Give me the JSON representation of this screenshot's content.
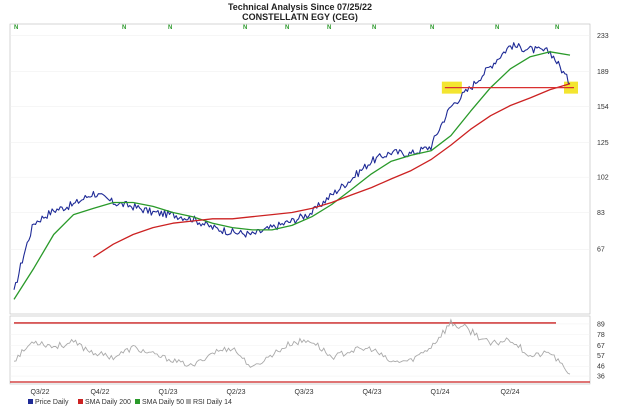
{
  "chart_data": {
    "type": "line",
    "title": "Technical Analysis Since 07/25/22",
    "subtitle": "CONSTELLATN EGY (CEG)",
    "price_panel": {
      "scale": "log",
      "ylim": [
        47,
        245
      ],
      "y_ticks": [
        233,
        189,
        154,
        125,
        102,
        83,
        67
      ],
      "series": [
        {
          "name": "Price Daily",
          "color": "#1e2a96",
          "x": [
            0,
            0.3,
            0.6,
            0.9,
            1.2,
            1.5,
            1.8,
            2.1,
            2.4,
            2.7,
            3.0,
            3.3,
            3.6,
            3.9,
            4.2,
            4.5,
            4.8,
            5.1,
            5.4,
            5.7,
            6.0,
            6.3,
            6.6,
            6.9,
            7.2,
            7.5,
            7.8,
            8.1,
            8.4
          ],
          "values": [
            52,
            78,
            84,
            87,
            93,
            88,
            86,
            83,
            82,
            80,
            76,
            74,
            73,
            76,
            79,
            83,
            92,
            101,
            112,
            118,
            117,
            122,
            154,
            172,
            195,
            220,
            215,
            212,
            176
          ]
        },
        {
          "name": "SMA Daily 50",
          "color": "#2a9a2a",
          "x": [
            0,
            0.3,
            0.6,
            0.9,
            1.2,
            1.5,
            1.8,
            2.1,
            2.4,
            2.7,
            3.0,
            3.3,
            3.6,
            3.9,
            4.2,
            4.5,
            4.8,
            5.1,
            5.4,
            5.7,
            6.0,
            6.3,
            6.6,
            6.9,
            7.2,
            7.5,
            7.8,
            8.1,
            8.4
          ],
          "values": [
            50,
            60,
            73,
            82,
            85,
            88,
            88,
            86,
            83,
            81,
            78,
            76,
            75,
            75,
            77,
            81,
            87,
            95,
            104,
            112,
            116,
            119,
            130,
            150,
            172,
            192,
            206,
            212,
            208
          ]
        },
        {
          "name": "SMA Daily 200",
          "color": "#cc2222",
          "x": [
            1.2,
            1.5,
            1.8,
            2.1,
            2.4,
            2.7,
            3.0,
            3.3,
            3.6,
            3.9,
            4.2,
            4.5,
            4.8,
            5.1,
            5.4,
            5.7,
            6.0,
            6.3,
            6.6,
            6.9,
            7.2,
            7.5,
            7.8,
            8.1,
            8.4
          ],
          "values": [
            64,
            69,
            73,
            76,
            78,
            79,
            80,
            80,
            81,
            82,
            83,
            85,
            88,
            92,
            96,
            101,
            106,
            113,
            123,
            135,
            146,
            155,
            162,
            170,
            176
          ]
        }
      ],
      "support_line": {
        "value": 172,
        "x_start": 6.6,
        "x_end": 8.4,
        "color": "#d93030"
      },
      "highlight_color": "#f2e21a"
    },
    "rsi_panel": {
      "series_name": "RSI Daily 14",
      "ylim": [
        30,
        95
      ],
      "y_ticks": [
        89,
        78,
        67,
        57,
        46,
        36
      ],
      "values": [
        52,
        72,
        66,
        70,
        60,
        55,
        65,
        58,
        52,
        46,
        60,
        65,
        44,
        58,
        70,
        72,
        55,
        62,
        64,
        50,
        52,
        66,
        90,
        82,
        68,
        74,
        56,
        60,
        38
      ],
      "upper_line": 90,
      "lower_line": 30,
      "line_color": "#aaaaaa",
      "threshold_color": "#cc2222"
    },
    "x_tick_labels": [
      "Q3/22",
      "Q4/22",
      "Q1/23",
      "Q2/23",
      "Q3/23",
      "Q4/23",
      "Q1/24",
      "Q2/24"
    ],
    "signal_markers": [
      "N",
      "N",
      "N",
      "N",
      "N",
      "N",
      "N",
      "N",
      "N",
      "N"
    ],
    "legend": [
      {
        "label": "Price Daily",
        "color": "#1e2a96"
      },
      {
        "label": "SMA Daily 200",
        "color": "#cc2222"
      },
      {
        "label": "SMA Daily 50",
        "color": "#2a9a2a"
      },
      {
        "label": "RSI Daily 14",
        "color": "#aaaaaa"
      }
    ]
  }
}
